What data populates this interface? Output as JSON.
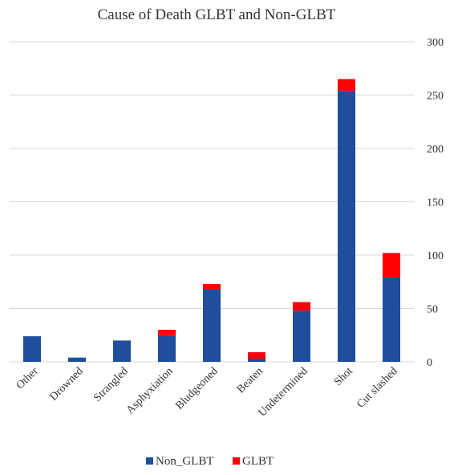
{
  "chart_data": {
    "type": "bar",
    "stacked": true,
    "title": "Cause of Death  GLBT  and Non-GLBT",
    "categories": [
      "Other",
      "Drowned",
      "Strangled",
      "Asphyxiation",
      "Bludgeoned",
      "Beaten",
      "Undetermined",
      "Shot",
      "Cut slashed"
    ],
    "series": [
      {
        "name": "Non_GLBT",
        "color": "#1f4e9c",
        "values": [
          24,
          4,
          20,
          25,
          68,
          3,
          48,
          254,
          79
        ]
      },
      {
        "name": "GLBT",
        "color": "#ff0000",
        "values": [
          0,
          0,
          0,
          5,
          5,
          6,
          8,
          11,
          23
        ]
      }
    ],
    "yticks": [
      "300",
      "250",
      "200",
      "150",
      "100",
      "50",
      "0"
    ],
    "ylim": [
      0,
      300
    ],
    "yaxis_side": "right",
    "grid": true,
    "legend": "bottom"
  }
}
